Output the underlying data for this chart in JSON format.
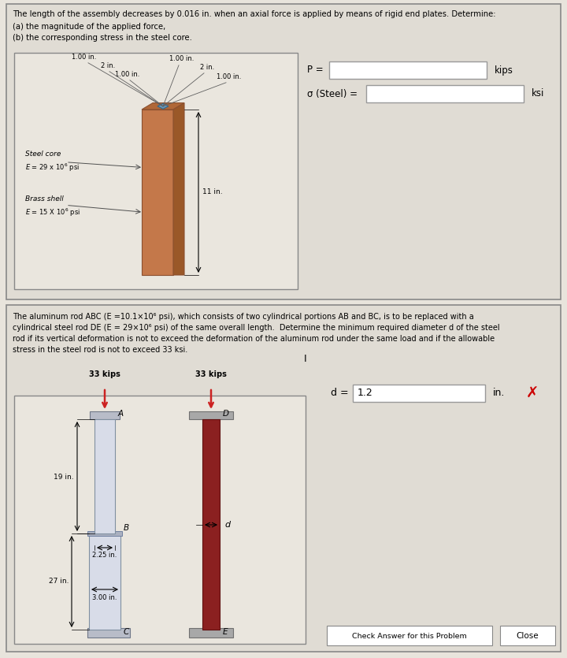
{
  "bg_color": "#e8e4dc",
  "panel_bg": "#e0dcd4",
  "inner_bg": "#e4e0d8",
  "white": "#ffffff",
  "border_color": "#999999",
  "problem1_lines": [
    "The length of the assembly decreases by 0.016 in. when an axial force is applied by means of rigid end plates. Determine:",
    "(a) the magnitude of the applied force,",
    "(b) the corresponding stress in the steel core."
  ],
  "problem2_lines": [
    "The aluminum rod ABC (E =10.1×10⁶ psi), which consists of two cylindrical portions AB and BC, is to be replaced with a",
    "cylindrical steel rod DE (E = 29×10⁶ psi) of the same overall length.  Determine the minimum required diameter d of the steel",
    "rod if its vertical deformation is not to exceed the deformation of the aluminum rod under the same load and if the allowable",
    "stress in the steel rod is not to exceed 33 ksi."
  ],
  "brass_face": "#c4784a",
  "brass_top": "#b06838",
  "brass_side": "#9a5828",
  "steel_core_color": "#6896b8",
  "rod_dark_red": "#8b2020",
  "rod_mid_red": "#7a3030",
  "aluminum_fill": "#d8dce8",
  "plate_gray": "#b8bcc8",
  "plate_dark": "#909090"
}
